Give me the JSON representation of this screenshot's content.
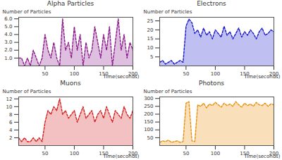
{
  "chart_data": [
    {
      "type": "area",
      "title": "Alpha Particles",
      "x_label": "Time(seconds)",
      "y_label": "Number of Particles",
      "x": [
        5,
        10,
        15,
        20,
        25,
        30,
        35,
        40,
        45,
        50,
        55,
        60,
        65,
        70,
        75,
        80,
        85,
        90,
        95,
        100,
        105,
        110,
        115,
        120,
        125,
        130,
        135,
        140,
        145,
        150,
        155,
        160,
        165,
        170,
        175,
        180,
        185,
        190,
        195,
        200
      ],
      "series": [
        {
          "color": "#8b1a8b",
          "line_style": "dashed",
          "values": [
            1,
            1,
            0,
            1,
            0,
            2,
            1,
            0,
            1,
            4,
            2,
            1,
            3,
            1,
            0,
            6,
            2,
            3,
            1,
            5,
            2,
            4,
            0,
            3,
            1,
            2,
            5,
            3,
            1,
            4,
            2,
            5,
            0,
            3,
            6,
            2,
            4,
            1,
            3,
            2
          ]
        }
      ],
      "xlim": [
        5,
        200
      ],
      "xticks": [
        50,
        100,
        150,
        200
      ],
      "ylim": [
        0,
        6.2
      ],
      "yticks": [
        1,
        2,
        3,
        4,
        5,
        6
      ],
      "grid": false
    },
    {
      "type": "area",
      "title": "Electrons",
      "x_label": "Time(seconds)",
      "y_label": "Number of Particles",
      "x": [
        5,
        10,
        15,
        20,
        25,
        30,
        35,
        40,
        45,
        50,
        55,
        60,
        65,
        70,
        75,
        80,
        85,
        90,
        95,
        100,
        105,
        110,
        115,
        120,
        125,
        130,
        135,
        140,
        145,
        150,
        155,
        160,
        165,
        170,
        175,
        180,
        185,
        190,
        195,
        200
      ],
      "series": [
        {
          "color": "#1a1acc",
          "line_style": "dashed",
          "values": [
            2,
            3,
            1,
            2,
            3,
            1,
            2,
            3,
            2,
            22,
            26,
            24,
            18,
            20,
            16,
            21,
            17,
            19,
            15,
            20,
            18,
            16,
            22,
            17,
            19,
            15,
            18,
            21,
            16,
            19,
            17,
            20,
            18,
            15,
            19,
            21,
            17,
            18,
            20,
            19
          ]
        }
      ],
      "xlim": [
        5,
        200
      ],
      "xticks": [
        50,
        100,
        150,
        200
      ],
      "ylim": [
        0,
        27
      ],
      "yticks": [
        5,
        10,
        15,
        20,
        25
      ],
      "grid": false
    },
    {
      "type": "area",
      "title": "Muons",
      "x_label": "Time(seconds)",
      "y_label": "Number of Particles",
      "x": [
        5,
        10,
        15,
        20,
        25,
        30,
        35,
        40,
        45,
        50,
        55,
        60,
        65,
        70,
        75,
        80,
        85,
        90,
        95,
        100,
        105,
        110,
        115,
        120,
        125,
        130,
        135,
        140,
        145,
        150,
        155,
        160,
        165,
        170,
        175,
        180,
        185,
        190,
        195,
        200
      ],
      "series": [
        {
          "color": "#d42020",
          "line_style": "dashed",
          "values": [
            2,
            1,
            2,
            1,
            1,
            2,
            1,
            2,
            1,
            6,
            9,
            8,
            10,
            9,
            12,
            8,
            9,
            7,
            8,
            9,
            6,
            8,
            10,
            7,
            8,
            9,
            6,
            8,
            9,
            7,
            10,
            8,
            6,
            9,
            8,
            7,
            10,
            8,
            7,
            9
          ]
        }
      ],
      "xlim": [
        5,
        200
      ],
      "xticks": [
        50,
        100,
        150,
        200
      ],
      "ylim": [
        0,
        12.5
      ],
      "yticks": [
        2,
        4,
        6,
        8,
        10,
        12
      ],
      "grid": false
    },
    {
      "type": "area",
      "title": "Photons",
      "x_label": "Time(seconds)",
      "y_label": "Number of Particles",
      "x": [
        5,
        10,
        15,
        20,
        25,
        30,
        35,
        40,
        45,
        50,
        55,
        60,
        65,
        70,
        75,
        80,
        85,
        90,
        95,
        100,
        105,
        110,
        115,
        120,
        125,
        130,
        135,
        140,
        145,
        150,
        155,
        160,
        165,
        170,
        175,
        180,
        185,
        190,
        195,
        200
      ],
      "series": [
        {
          "color": "#e8900c",
          "line_style": "dashed",
          "values": [
            20,
            30,
            25,
            35,
            20,
            25,
            30,
            20,
            25,
            270,
            280,
            30,
            25,
            260,
            250,
            270,
            240,
            265,
            255,
            275,
            260,
            245,
            270,
            255,
            265,
            250,
            280,
            260,
            245,
            270,
            255,
            265,
            250,
            275,
            260,
            255,
            270,
            250,
            265,
            260
          ]
        }
      ],
      "xlim": [
        5,
        200
      ],
      "xticks": [
        50,
        100,
        150,
        200
      ],
      "ylim": [
        0,
        310
      ],
      "yticks": [
        50,
        100,
        150,
        200,
        250,
        300
      ],
      "grid": false
    }
  ]
}
